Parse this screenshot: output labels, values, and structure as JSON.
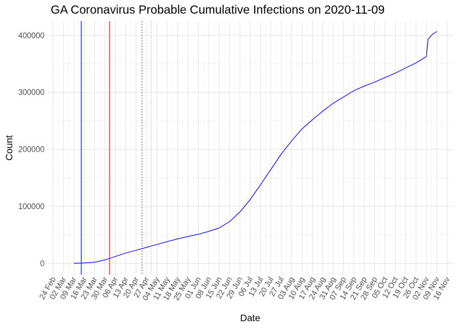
{
  "chart_data": {
    "type": "line",
    "title": "GA Coronavirus Probable Cumulative Infections on 2020-11-09",
    "xlabel": "Date",
    "ylabel": "Count",
    "x_range": [
      "2020-02-20",
      "2020-11-20"
    ],
    "ylim": [
      -20000,
      425000
    ],
    "grid": true,
    "x_tick_dates": [
      "2020-02-24",
      "2020-03-02",
      "2020-03-09",
      "2020-03-16",
      "2020-03-23",
      "2020-03-30",
      "2020-04-06",
      "2020-04-13",
      "2020-04-20",
      "2020-04-27",
      "2020-05-04",
      "2020-05-11",
      "2020-05-18",
      "2020-05-25",
      "2020-06-01",
      "2020-06-08",
      "2020-06-15",
      "2020-06-22",
      "2020-06-29",
      "2020-07-06",
      "2020-07-13",
      "2020-07-20",
      "2020-07-27",
      "2020-08-03",
      "2020-08-10",
      "2020-08-17",
      "2020-08-24",
      "2020-08-31",
      "2020-09-07",
      "2020-09-14",
      "2020-09-21",
      "2020-09-28",
      "2020-10-05",
      "2020-10-12",
      "2020-10-19",
      "2020-10-26",
      "2020-11-02",
      "2020-11-09",
      "2020-11-16"
    ],
    "x_tick_labels": [
      "24 Feb",
      "02 Mar",
      "09 Mar",
      "16 Mar",
      "23 Mar",
      "30 Mar",
      "06 Apr",
      "13 Apr",
      "20 Apr",
      "27 Apr",
      "04 May",
      "11 May",
      "18 May",
      "25 May",
      "01 Jun",
      "08 Jun",
      "15 Jun",
      "22 Jun",
      "29 Jun",
      "06 Jul",
      "13 Jul",
      "20 Jul",
      "27 Jul",
      "03 Aug",
      "10 Aug",
      "17 Aug",
      "24 Aug",
      "31 Aug",
      "07 Sep",
      "14 Sep",
      "21 Sep",
      "28 Sep",
      "05 Oct",
      "12 Oct",
      "19 Oct",
      "26 Oct",
      "02 Nov",
      "09 Nov",
      "16 Nov"
    ],
    "y_ticks": [
      0,
      100000,
      200000,
      300000,
      400000
    ],
    "y_tick_labels": [
      "0",
      "100000",
      "200000",
      "300000",
      "400000"
    ],
    "vlines": [
      {
        "date": "2020-03-14",
        "color": "#0000ff",
        "style": "solid"
      },
      {
        "date": "2020-04-02",
        "color": "#ff0000",
        "style": "solid"
      },
      {
        "date": "2020-04-24",
        "color": "#ff0000",
        "style": "dotted"
      },
      {
        "date": "2020-04-30",
        "color": "#ffb0b0",
        "style": "dotted"
      }
    ],
    "series": [
      {
        "color": "#0000ff",
        "x": [
          "2020-03-09",
          "2020-03-16",
          "2020-03-23",
          "2020-03-30",
          "2020-04-06",
          "2020-04-13",
          "2020-04-20",
          "2020-04-27",
          "2020-05-04",
          "2020-05-11",
          "2020-05-18",
          "2020-05-25",
          "2020-06-01",
          "2020-06-08",
          "2020-06-15",
          "2020-06-22",
          "2020-06-29",
          "2020-07-06",
          "2020-07-13",
          "2020-07-20",
          "2020-07-27",
          "2020-08-03",
          "2020-08-10",
          "2020-08-17",
          "2020-08-24",
          "2020-08-31",
          "2020-09-07",
          "2020-09-14",
          "2020-09-21",
          "2020-09-28",
          "2020-10-05",
          "2020-10-12",
          "2020-10-19",
          "2020-10-26",
          "2020-11-02",
          "2020-11-03",
          "2020-11-06",
          "2020-11-09"
        ],
        "y": [
          100,
          500,
          2000,
          6000,
          12000,
          18000,
          23000,
          28000,
          33000,
          38000,
          43000,
          47000,
          51000,
          56000,
          62000,
          73000,
          90000,
          112000,
          138000,
          165000,
          192000,
          215000,
          236000,
          252000,
          267000,
          281000,
          292000,
          303000,
          311000,
          318000,
          326000,
          334000,
          343000,
          352000,
          363000,
          393000,
          402000,
          407000
        ]
      }
    ]
  }
}
